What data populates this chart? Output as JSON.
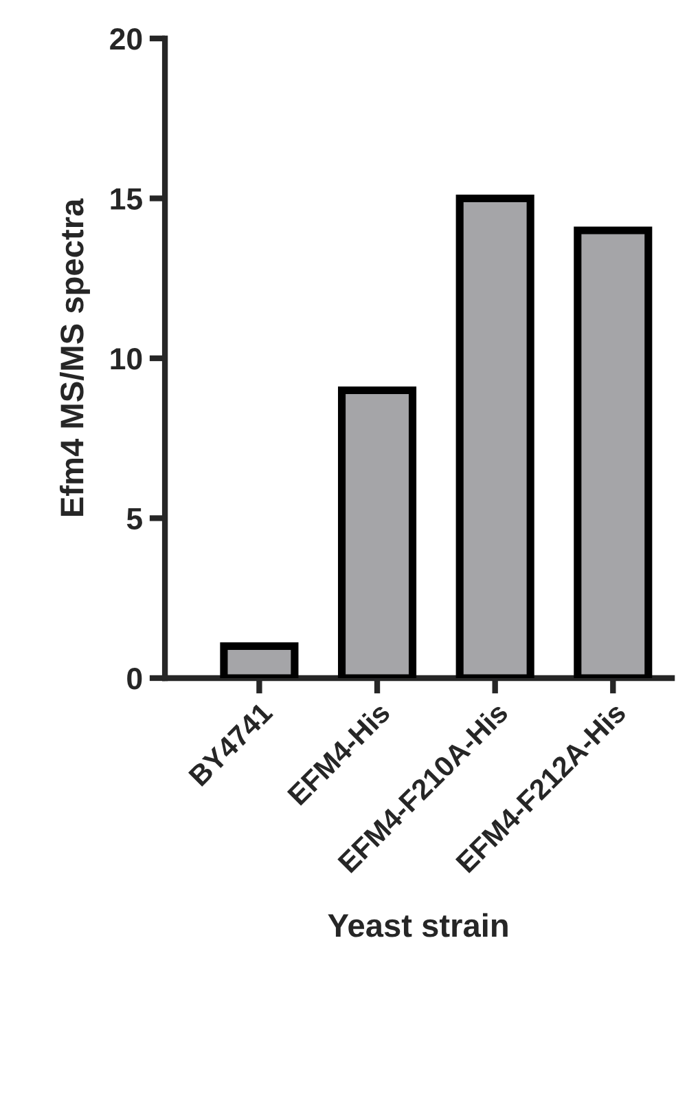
{
  "chart_data": {
    "type": "bar",
    "xlabel": "Yeast strain",
    "ylabel": "Efm4 MS/MS spectra",
    "categories": [
      "BY4741",
      "EFM4-His",
      "EFM4-F210A-His",
      "EFM4-F212A-His"
    ],
    "values": [
      1,
      9,
      15,
      14
    ],
    "color": "#a5a5a8",
    "ylim": [
      0,
      20
    ],
    "yticks": [
      0,
      5,
      10,
      15,
      20
    ],
    "grid": false,
    "legend": false
  }
}
